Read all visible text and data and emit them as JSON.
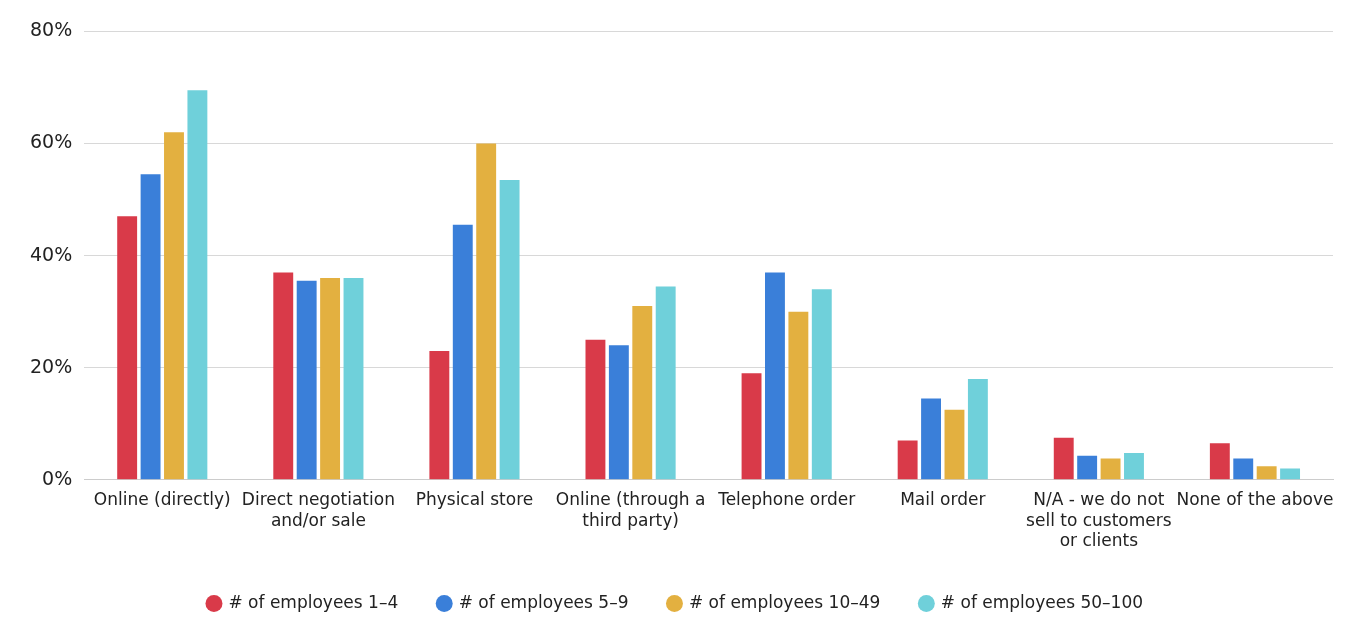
{
  "chart_data": {
    "type": "bar",
    "categories": [
      "Online (directly)",
      "Direct negotiation and/or sale",
      "Physical store",
      "Online (through a third party)",
      "Telephone order",
      "Mail order",
      "N/A - we do not sell to customers or clients",
      "None of the above"
    ],
    "series": [
      {
        "name": "# of employees 1–4",
        "color": "#d93a49",
        "values": [
          47,
          37,
          23,
          25,
          19,
          7,
          7.5,
          6.5
        ]
      },
      {
        "name": "# of employees 5–9",
        "color": "#3a7fd9",
        "values": [
          54.5,
          35.5,
          45.5,
          24,
          37,
          14.5,
          4.3,
          3.8
        ]
      },
      {
        "name": "# of employees 10–49",
        "color": "#e3b040",
        "values": [
          62,
          36,
          60,
          31,
          30,
          12.5,
          3.8,
          2.4
        ]
      },
      {
        "name": "# of employees 50–100",
        "color": "#6fd0da",
        "values": [
          69.5,
          36,
          53.5,
          34.5,
          34,
          18,
          4.8,
          2
        ]
      }
    ],
    "ylim": [
      0,
      80
    ],
    "yticks": [
      {
        "value": 0,
        "label": "0%"
      },
      {
        "value": 20,
        "label": "20%"
      },
      {
        "value": 40,
        "label": "40%"
      },
      {
        "value": 60,
        "label": "60%"
      },
      {
        "value": 80,
        "label": "80%"
      }
    ],
    "grid": "y",
    "legend": "bottom"
  }
}
